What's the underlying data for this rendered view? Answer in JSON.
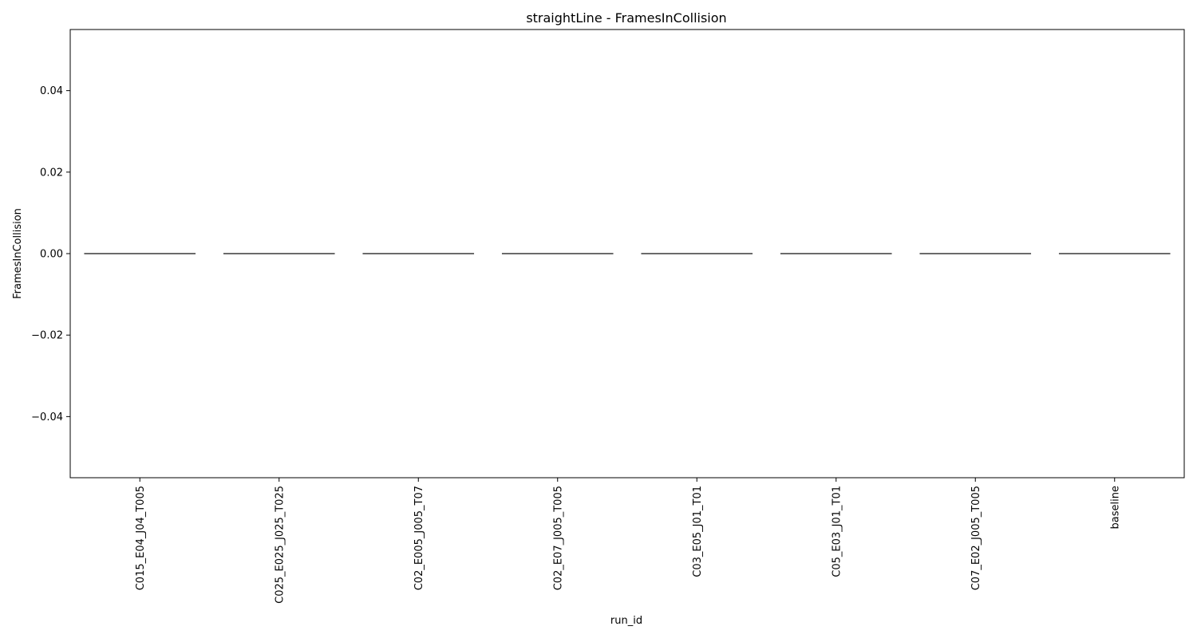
{
  "chart_data": {
    "type": "box",
    "title": "straightLine - FramesInCollision",
    "xlabel": "run_id",
    "ylabel": "FramesInCollision",
    "categories": [
      "C015_E04_J04_T005",
      "C025_E025_J025_T025",
      "C02_E005_J005_T07",
      "C02_E07_J005_T005",
      "C03_E05_J01_T01",
      "C05_E03_J01_T01",
      "C07_E02_J005_T005",
      "baseline"
    ],
    "values": [
      0,
      0,
      0,
      0,
      0,
      0,
      0,
      0
    ],
    "ylim": [
      -0.055,
      0.055
    ],
    "yticks": [
      -0.04,
      -0.02,
      0.0,
      0.02,
      0.04
    ],
    "ytick_labels": [
      "−0.04",
      "−0.02",
      "0.00",
      "0.02",
      "0.04"
    ],
    "grid": false,
    "legend": false,
    "box_color": "#3a3a3a"
  }
}
